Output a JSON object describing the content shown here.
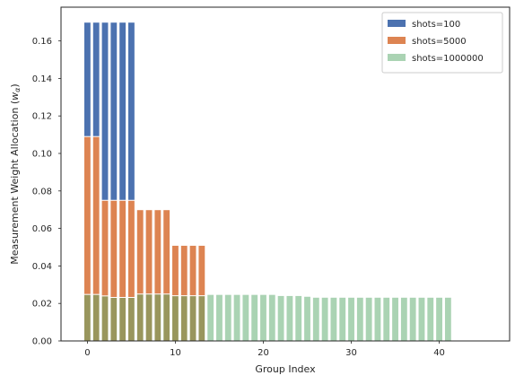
{
  "chart_data": {
    "type": "bar",
    "title": "",
    "xlabel": "Group Index",
    "ylabel": "Measurement Weight Allocation ($w_\\alpha$)",
    "ylabel_text": "Measurement Weight Allocation (",
    "ylabel_symbol": "w",
    "ylabel_subscript": "α",
    "ylabel_close": ")",
    "xlim": [
      -3,
      48
    ],
    "ylim": [
      0,
      0.178
    ],
    "xticks": [
      0,
      10,
      20,
      30,
      40
    ],
    "yticks": [
      0.0,
      0.02,
      0.04,
      0.06,
      0.08,
      0.1,
      0.12,
      0.14,
      0.16
    ],
    "ytick_labels": [
      "0.00",
      "0.02",
      "0.04",
      "0.06",
      "0.08",
      "0.10",
      "0.12",
      "0.14",
      "0.16"
    ],
    "grid": false,
    "legend_position": "top-right",
    "series": [
      {
        "name": "shots=100",
        "color": "#4c72b0",
        "x": [
          0,
          1,
          2,
          3,
          4,
          5
        ],
        "values": [
          0.17,
          0.17,
          0.17,
          0.17,
          0.17,
          0.17
        ]
      },
      {
        "name": "shots=5000",
        "color": "#dd8452",
        "x": [
          0,
          1,
          2,
          3,
          4,
          5,
          6,
          7,
          8,
          9,
          10,
          11,
          12,
          13
        ],
        "values": [
          0.109,
          0.109,
          0.075,
          0.075,
          0.075,
          0.075,
          0.07,
          0.07,
          0.07,
          0.07,
          0.051,
          0.051,
          0.051,
          0.051
        ]
      },
      {
        "name": "shots=1000000",
        "color": "#55a868",
        "opacity": 0.5,
        "x": [
          0,
          1,
          2,
          3,
          4,
          5,
          6,
          7,
          8,
          9,
          10,
          11,
          12,
          13,
          14,
          15,
          16,
          17,
          18,
          19,
          20,
          21,
          22,
          23,
          24,
          25,
          26,
          27,
          28,
          29,
          30,
          31,
          32,
          33,
          34,
          35,
          36,
          37,
          38,
          39,
          40,
          41
        ],
        "values": [
          0.0248,
          0.0248,
          0.024,
          0.0232,
          0.0232,
          0.0232,
          0.025,
          0.025,
          0.025,
          0.025,
          0.0241,
          0.0241,
          0.0241,
          0.0241,
          0.0248,
          0.0248,
          0.0248,
          0.0248,
          0.0248,
          0.0248,
          0.0248,
          0.0248,
          0.0242,
          0.0242,
          0.0242,
          0.0238,
          0.0233,
          0.0233,
          0.0233,
          0.0233,
          0.0233,
          0.0233,
          0.0233,
          0.0233,
          0.0233,
          0.0233,
          0.0233,
          0.0233,
          0.0233,
          0.0233,
          0.0233,
          0.0233
        ]
      }
    ]
  }
}
